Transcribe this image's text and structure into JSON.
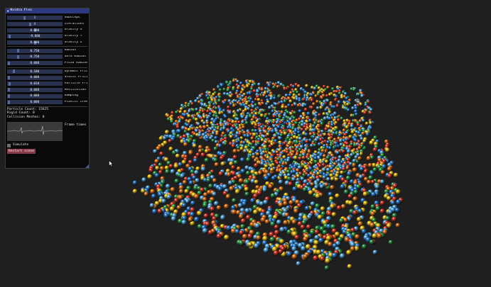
{
  "panel": {
    "title": "Nvidia Flex",
    "sliders": [
      {
        "value": "3",
        "label": "Substeps",
        "level": 0.3
      },
      {
        "value": "4",
        "label": "Iterations",
        "level": 0.4
      },
      {
        "value": "0.000",
        "label": "Gravity X",
        "level": 0.5
      },
      {
        "value": "-9.800",
        "label": "Gravity Y",
        "level": 0.02
      },
      {
        "value": "0.000",
        "label": "Gravity Z",
        "level": 0.5
      },
      {
        "value": "0.750",
        "label": "Radius",
        "level": 0.18
      },
      {
        "value": "0.750",
        "label": "Sord Radius",
        "level": 0.18
      },
      {
        "value": "0.000",
        "label": "Fluid Radius",
        "level": 0.0
      },
      {
        "value": "0.100",
        "label": "Dynamic Frictio",
        "level": 0.1
      },
      {
        "value": "0.000",
        "label": "Static Frictio",
        "level": 0.0
      },
      {
        "value": "0.010",
        "label": "Particle Frict",
        "level": 0.01
      },
      {
        "value": "0.000",
        "label": "Restitution",
        "level": 0.0
      },
      {
        "value": "0.000",
        "label": "Damping",
        "level": 0.0
      },
      {
        "value": "0.000",
        "label": "Plastic Creep",
        "level": 0.0
      }
    ],
    "stats": {
      "particle_count": "Particle Count: 15625",
      "rigid_count": "Rigid Count: 0",
      "collision_meshes": "Collision Meshes: 0"
    },
    "frame_times_label": "Frame times",
    "simulate_label": "Simulate",
    "simulate_checked": false,
    "restart_label": "Restart scene"
  },
  "colors": {
    "background": "#1f1f1f",
    "panel_bg": "#08080a",
    "title_bar": "#2d3a82",
    "slider_bg": "#29324e",
    "slider_grab": "#5b6a9e",
    "restart_button": "#8a3a48",
    "particle_palette": [
      "#2a7fd4",
      "#f2c81a",
      "#d93a2a",
      "#2f9a48",
      "#e8771a",
      "#5cb0ea"
    ]
  }
}
